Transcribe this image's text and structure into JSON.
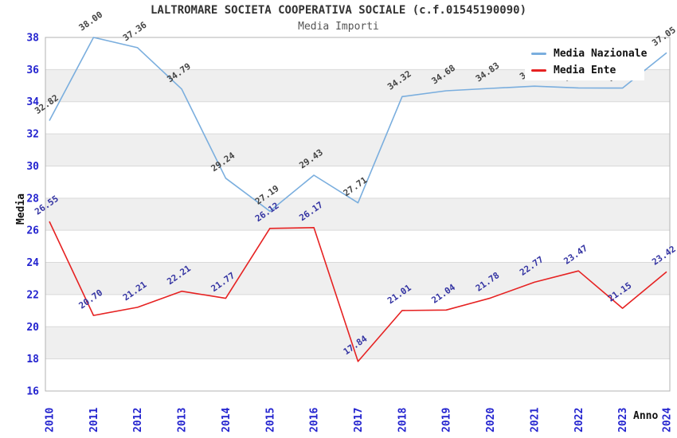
{
  "title": "LALTROMARE SOCIETA COOPERATIVA SOCIALE (c.f.01545190090)",
  "subtitle": "Media Importi",
  "colors": {
    "nazionale_line": "#7aaede",
    "ente_line": "#e62222",
    "nazionale_label": "#444444",
    "ente_label": "#3333a2",
    "axis_tick": "#2424cf",
    "band": "#efefef",
    "gridline": "#d9d9d9",
    "plot_border": "#b3b3b3",
    "axis_title": "#111111"
  },
  "chart_data": {
    "type": "line",
    "title": "LALTROMARE SOCIETA COOPERATIVA SOCIALE (c.f.01545190090)",
    "subtitle": "Media Importi",
    "xlabel": "Anno",
    "ylabel": "Media",
    "x": [
      2010,
      2011,
      2012,
      2013,
      2014,
      2015,
      2016,
      2017,
      2018,
      2019,
      2020,
      2021,
      2022,
      2023,
      2024
    ],
    "series": [
      {
        "name": "Media Nazionale",
        "color": "#7aaede",
        "label_color": "#444444",
        "values": [
          32.82,
          38.0,
          37.36,
          34.79,
          29.24,
          27.19,
          29.43,
          27.71,
          34.32,
          34.68,
          34.83,
          34.97,
          34.86,
          34.85,
          37.05
        ]
      },
      {
        "name": "Media Ente",
        "color": "#e62222",
        "label_color": "#3333a2",
        "values": [
          26.55,
          20.7,
          21.21,
          22.21,
          21.77,
          26.12,
          26.17,
          17.84,
          21.01,
          21.04,
          21.78,
          22.77,
          23.47,
          21.15,
          23.42
        ]
      }
    ],
    "ylim": [
      16,
      38
    ],
    "y_tick_step": 2,
    "y_ticks": [
      16,
      18,
      20,
      22,
      24,
      26,
      28,
      30,
      32,
      34,
      36,
      38
    ],
    "grid": "horizontal-bands",
    "legend_position": "top-right",
    "point_labels": "values shown rotated at each point"
  }
}
